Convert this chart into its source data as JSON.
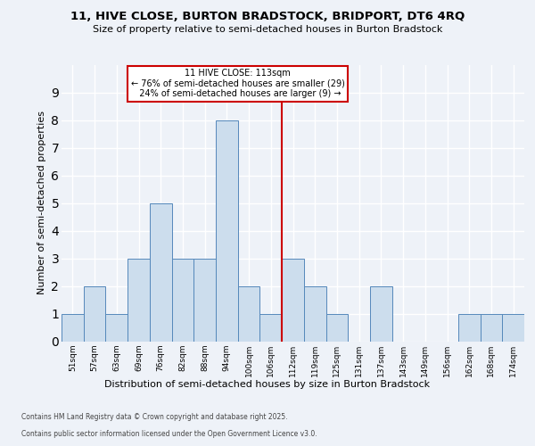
{
  "title": "11, HIVE CLOSE, BURTON BRADSTOCK, BRIDPORT, DT6 4RQ",
  "subtitle": "Size of property relative to semi-detached houses in Burton Bradstock",
  "xlabel": "Distribution of semi-detached houses by size in Burton Bradstock",
  "ylabel": "Number of semi-detached properties",
  "bins": [
    "51sqm",
    "57sqm",
    "63sqm",
    "69sqm",
    "76sqm",
    "82sqm",
    "88sqm",
    "94sqm",
    "100sqm",
    "106sqm",
    "112sqm",
    "119sqm",
    "125sqm",
    "131sqm",
    "137sqm",
    "143sqm",
    "149sqm",
    "156sqm",
    "162sqm",
    "168sqm",
    "174sqm"
  ],
  "values": [
    1,
    2,
    1,
    3,
    5,
    3,
    3,
    8,
    2,
    1,
    3,
    2,
    1,
    0,
    2,
    0,
    0,
    0,
    1,
    1,
    1
  ],
  "bar_color": "#ccdded",
  "bar_edge_color": "#5588bb",
  "red_line_x": 9.5,
  "highlight_color": "#cc0000",
  "highlight_label": "11 HIVE CLOSE: 113sqm",
  "pct_smaller": "76% of semi-detached houses are smaller (29)",
  "pct_larger": "24% of semi-detached houses are larger (9)",
  "annotation_box_color": "#cc0000",
  "background_color": "#eef2f8",
  "grid_color": "#d8dce8",
  "footer_line1": "Contains HM Land Registry data © Crown copyright and database right 2025.",
  "footer_line2": "Contains public sector information licensed under the Open Government Licence v3.0.",
  "ylim": [
    0,
    10
  ],
  "yticks": [
    0,
    1,
    2,
    3,
    4,
    5,
    6,
    7,
    8,
    9,
    10
  ]
}
